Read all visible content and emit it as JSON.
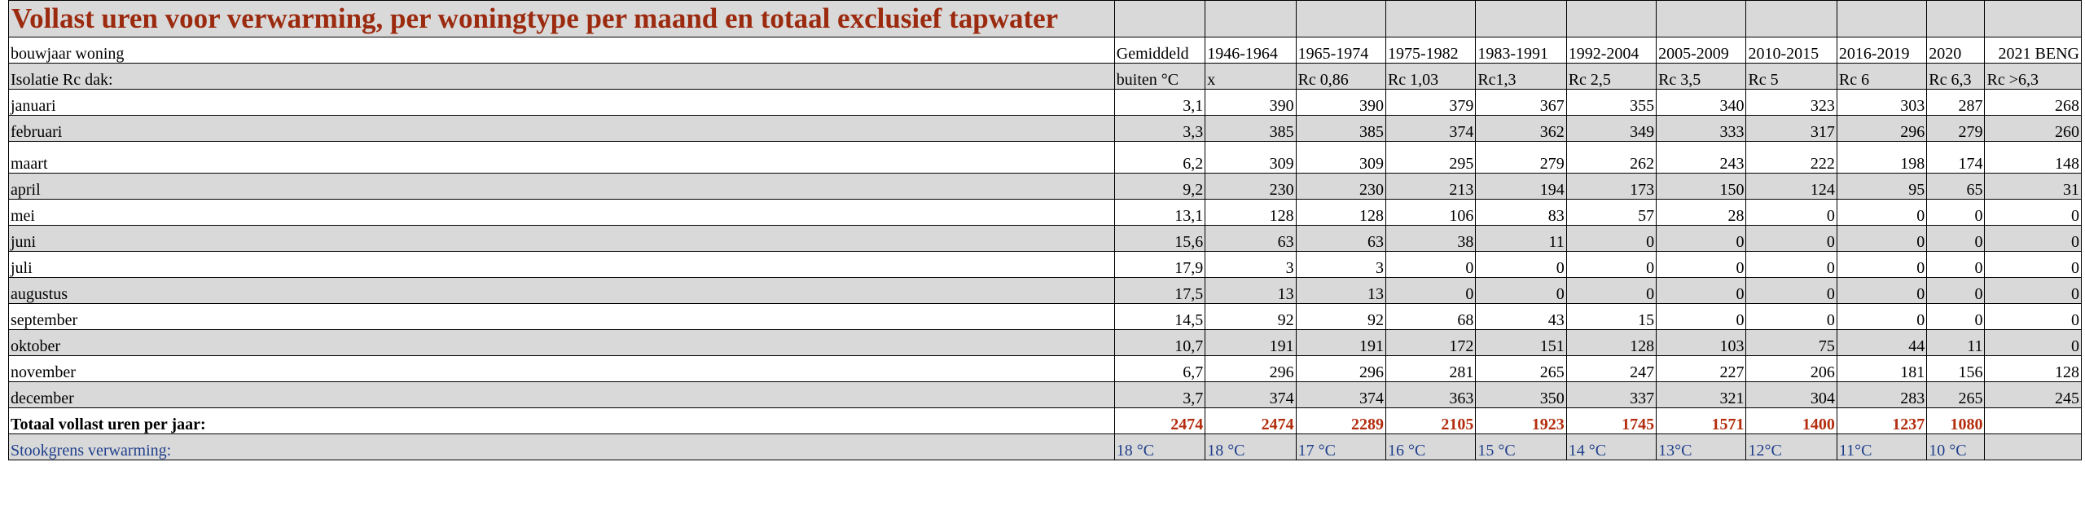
{
  "title": "Vollast uren voor verwarming, per woningtype per maand en totaal exclusief tapwater",
  "header": {
    "label": "bouwjaar woning",
    "columns": [
      "Gemiddeld",
      "1946-1964",
      "1965-1974",
      "1975-1982",
      "1983-1991",
      "1992-2004",
      "2005-2009",
      "2010-2015",
      "2016-2019",
      "2020",
      "2021 BENG"
    ]
  },
  "insulation": {
    "label": "Isolatie Rc dak:",
    "values": [
      "buiten °C",
      "x",
      "Rc 0,86",
      "Rc 1,03",
      "Rc1,3",
      "Rc 2,5",
      "Rc 3,5",
      "Rc 5",
      "Rc 6",
      "Rc 6,3",
      "Rc >6,3"
    ]
  },
  "months": [
    {
      "name": "januari",
      "values": [
        "3,1",
        "390",
        "390",
        "379",
        "367",
        "355",
        "340",
        "323",
        "303",
        "287",
        "268"
      ]
    },
    {
      "name": "februari",
      "values": [
        "3,3",
        "385",
        "385",
        "374",
        "362",
        "349",
        "333",
        "317",
        "296",
        "279",
        "260"
      ]
    },
    {
      "name": "maart",
      "values": [
        "6,2",
        "309",
        "309",
        "295",
        "279",
        "262",
        "243",
        "222",
        "198",
        "174",
        "148"
      ]
    },
    {
      "name": "april",
      "values": [
        "9,2",
        "230",
        "230",
        "213",
        "194",
        "173",
        "150",
        "124",
        "95",
        "65",
        "31"
      ]
    },
    {
      "name": "mei",
      "values": [
        "13,1",
        "128",
        "128",
        "106",
        "83",
        "57",
        "28",
        "0",
        "0",
        "0",
        "0"
      ]
    },
    {
      "name": "juni",
      "values": [
        "15,6",
        "63",
        "63",
        "38",
        "11",
        "0",
        "0",
        "0",
        "0",
        "0",
        "0"
      ]
    },
    {
      "name": "juli",
      "values": [
        "17,9",
        "3",
        "3",
        "0",
        "0",
        "0",
        "0",
        "0",
        "0",
        "0",
        "0"
      ]
    },
    {
      "name": "augustus",
      "values": [
        "17,5",
        "13",
        "13",
        "0",
        "0",
        "0",
        "0",
        "0",
        "0",
        "0",
        "0"
      ]
    },
    {
      "name": "september",
      "values": [
        "14,5",
        "92",
        "92",
        "68",
        "43",
        "15",
        "0",
        "0",
        "0",
        "0",
        "0"
      ]
    },
    {
      "name": "oktober",
      "values": [
        "10,7",
        "191",
        "191",
        "172",
        "151",
        "128",
        "103",
        "75",
        "44",
        "11",
        "0"
      ]
    },
    {
      "name": "november",
      "values": [
        "6,7",
        "296",
        "296",
        "281",
        "265",
        "247",
        "227",
        "206",
        "181",
        "156",
        "128"
      ]
    },
    {
      "name": "december",
      "values": [
        "3,7",
        "374",
        "374",
        "363",
        "350",
        "337",
        "321",
        "304",
        "283",
        "265",
        "245"
      ]
    }
  ],
  "total": {
    "label": "Totaal vollast uren per jaar:",
    "values": [
      "2474",
      "2474",
      "2289",
      "2105",
      "1923",
      "1745",
      "1571",
      "1400",
      "1237",
      "1080",
      ""
    ]
  },
  "stookgrens": {
    "label": "Stookgrens verwarming:",
    "values": [
      "18 °C",
      "18 °C",
      "17 °C",
      "16 °C",
      "15 °C",
      "14 °C",
      "13°C",
      "12°C",
      "11°C",
      "10 °C",
      ""
    ]
  },
  "colors": {
    "title": "#9b2a0f",
    "total": "#b32d0e",
    "stookgrens": "#1f3f8c",
    "band": "#d9d9d9"
  }
}
